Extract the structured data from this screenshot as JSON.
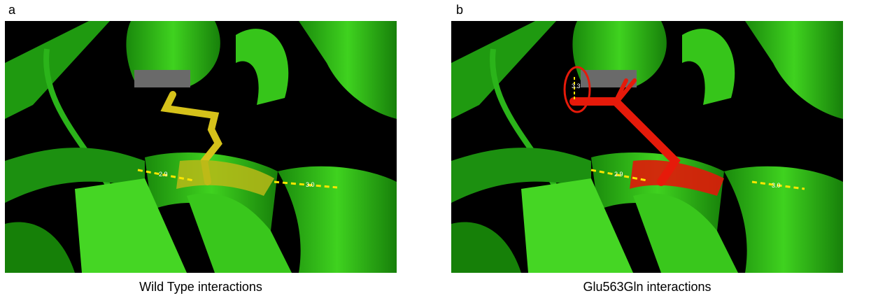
{
  "panels": [
    {
      "label": "a",
      "caption": "Wild Type interactions",
      "distances": [
        "2.9",
        "3.0"
      ]
    },
    {
      "label": "b",
      "caption": "Glu563Gln interactions",
      "distances": [
        "2.9",
        "3.0",
        "3.3"
      ]
    }
  ]
}
